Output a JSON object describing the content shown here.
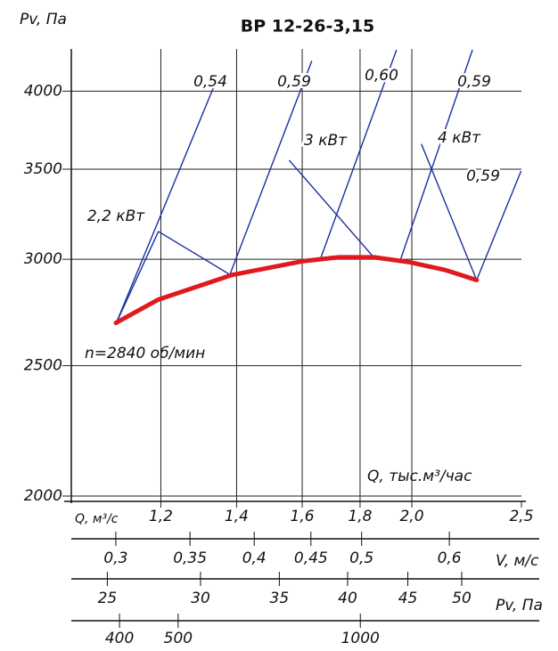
{
  "chart_data": {
    "type": "line",
    "title": "ВР 12-26-3,15",
    "ylabel": "Pv, Па",
    "xlabel": "Q, м³/с",
    "x_scale": "log",
    "y_scale": "log",
    "xlim": [
      1.0,
      2.5
    ],
    "ylim": [
      2000,
      4300
    ],
    "xticks": [
      {
        "value": 1.2,
        "label": "1,2"
      },
      {
        "value": 1.4,
        "label": "1,4"
      },
      {
        "value": 1.6,
        "label": "1,6"
      },
      {
        "value": 1.8,
        "label": "1,8"
      },
      {
        "value": 2.0,
        "label": "2,0"
      },
      {
        "value": 2.5,
        "label": "2,5"
      }
    ],
    "yticks": [
      2000,
      2500,
      3000,
      3500,
      4000
    ],
    "grid": true,
    "curve": {
      "color": "#e0191e",
      "x": [
        1.095,
        1.194,
        1.386,
        1.602,
        1.722,
        1.852,
        1.991,
        2.141,
        2.282
      ],
      "values": [
        2690,
        2800,
        2920,
        2990,
        3010,
        3010,
        2985,
        2945,
        2895
      ]
    },
    "lines": [
      {
        "name": "0,54",
        "color": "#1a2fa0",
        "x": [
          1.095,
          1.349
        ],
        "values": [
          2686,
          4108
        ]
      },
      {
        "name": "0,59",
        "color": "#1a2fa0",
        "x": [
          1.381,
          1.631
        ],
        "values": [
          2922,
          4210
        ]
      },
      {
        "name": "0,60",
        "color": "#1a2fa0",
        "x": [
          1.661,
          1.938
        ],
        "values": [
          3004,
          4290
        ]
      },
      {
        "name": "0,59",
        "color": "#1a2fa0",
        "x": [
          1.956,
          2.262
        ],
        "values": [
          3004,
          4290
        ]
      },
      {
        "name": "0,59",
        "color": "#1a2fa0",
        "x": [
          2.282,
          2.497
        ],
        "values": [
          2895,
          3486
        ]
      },
      {
        "name": "2,2 кВт",
        "color": "#1a2fa0",
        "x": [
          1.095,
          1.194,
          1.381
        ],
        "values": [
          2686,
          3146,
          2922
        ]
      },
      {
        "name": "3 кВт",
        "color": "#1a2fa0",
        "x": [
          1.559,
          1.852
        ],
        "values": [
          3552,
          3008
        ]
      },
      {
        "name": "4 кВт",
        "color": "#1a2fa0",
        "x": [
          2.04,
          2.282
        ],
        "values": [
          3652,
          2895
        ]
      }
    ],
    "annotations": [
      "n=2840 об/мин",
      "Q, тыс.м³/час"
    ],
    "secondary_axes": [
      {
        "label": "V, м/с",
        "lim": [
          0.2735,
          0.697
        ],
        "ticks": [
          {
            "value": 0.3,
            "label": "0,3"
          },
          {
            "value": 0.35,
            "label": "0,35"
          },
          {
            "value": 0.4,
            "label": "0,4"
          },
          {
            "value": 0.45,
            "label": "0,45"
          },
          {
            "value": 0.5,
            "label": "0,5"
          },
          {
            "value": 0.6,
            "label": "0,6"
          }
        ]
      },
      {
        "label": "Pv, Па",
        "lim": [
          23.3,
          56.2
        ],
        "ticks": [
          25,
          30,
          35,
          40,
          45,
          50
        ]
      },
      {
        "lim": [
          333,
          1846
        ],
        "ticks": [
          400,
          500,
          1000
        ]
      }
    ]
  }
}
